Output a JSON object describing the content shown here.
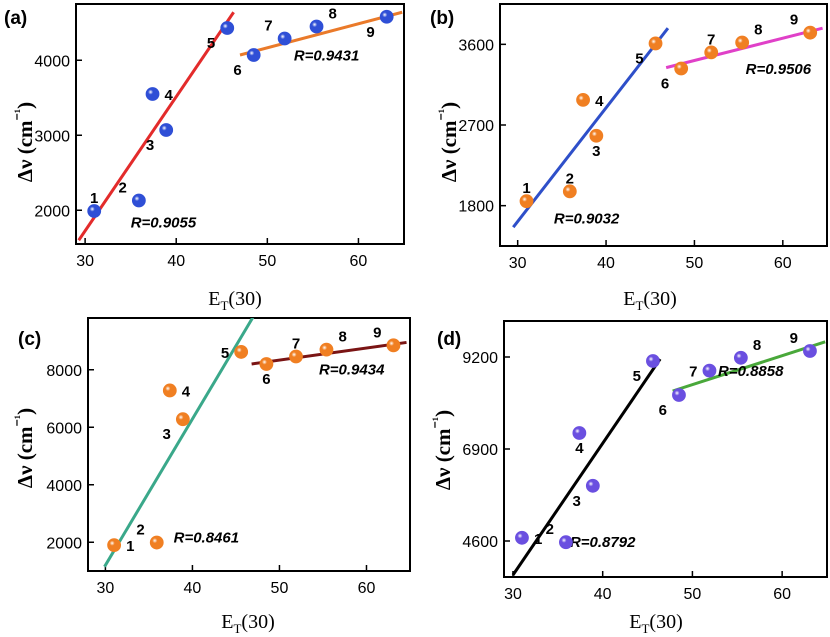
{
  "colors": {
    "blue_point": "#2f4fd6",
    "orange_point": "#f07f22",
    "purple_point": "#6a4fe0",
    "line_a1": "#e32b2b",
    "line_a2": "#ea7a2a",
    "line_b1": "#2e4fc9",
    "line_b2": "#e040c8",
    "line_c1": "#3aa88a",
    "line_c2": "#7a1414",
    "line_d1": "#000000",
    "line_d2": "#49a83a"
  },
  "chart_data": [
    {
      "panel": "(a)",
      "type": "scatter",
      "xlabel": "E_T(30)",
      "ylabel": "Δν (cm⁻¹)",
      "xlim": [
        29,
        65
      ],
      "ylim": [
        1550,
        4750
      ],
      "xticks": [
        30,
        40,
        50,
        60
      ],
      "yticks": [
        2000,
        3000,
        4000
      ],
      "point_color": "blue_point",
      "points": [
        {
          "label": "1",
          "x": 31.0,
          "y": 1990
        },
        {
          "label": "2",
          "x": 35.9,
          "y": 2130
        },
        {
          "label": "3",
          "x": 38.9,
          "y": 3070
        },
        {
          "label": "4",
          "x": 37.4,
          "y": 3550
        },
        {
          "label": "5",
          "x": 45.6,
          "y": 4430
        },
        {
          "label": "6",
          "x": 48.5,
          "y": 4070
        },
        {
          "label": "7",
          "x": 51.9,
          "y": 4290
        },
        {
          "label": "8",
          "x": 55.4,
          "y": 4450
        },
        {
          "label": "9",
          "x": 63.1,
          "y": 4580
        }
      ],
      "fits": [
        {
          "color": "line_a1",
          "x": [
            29.3,
            46.3
          ],
          "y": [
            1600,
            4640
          ],
          "R": "R=0.9055"
        },
        {
          "color": "line_a2",
          "x": [
            47.0,
            64.8
          ],
          "y": [
            4070,
            4640
          ],
          "R": "R=0.9431"
        }
      ],
      "label_offsets": {
        "1": [
          0,
          -1
        ],
        "2": [
          -1,
          -1
        ],
        "3": [
          -1,
          1
        ],
        "4": [
          1,
          0
        ],
        "5": [
          -1,
          1
        ],
        "6": [
          -1,
          1
        ],
        "7": [
          -1,
          -1
        ],
        "8": [
          1,
          -1
        ],
        "9": [
          -1,
          1
        ]
      },
      "r_positions": [
        [
          38.6,
          1770
        ],
        [
          56.5,
          4000
        ]
      ]
    },
    {
      "panel": "(b)",
      "type": "scatter",
      "xlabel": "E_T(30)",
      "ylabel": "Δν (cm⁻¹)",
      "xlim": [
        28,
        65
      ],
      "ylim": [
        1350,
        4050
      ],
      "xticks": [
        30,
        40,
        50,
        60
      ],
      "yticks": [
        1800,
        2700,
        3600
      ],
      "point_color": "orange_point",
      "points": [
        {
          "label": "1",
          "x": 31.0,
          "y": 1850
        },
        {
          "label": "2",
          "x": 35.9,
          "y": 1960
        },
        {
          "label": "3",
          "x": 38.9,
          "y": 2580
        },
        {
          "label": "4",
          "x": 37.4,
          "y": 2980
        },
        {
          "label": "5",
          "x": 45.6,
          "y": 3610
        },
        {
          "label": "6",
          "x": 48.5,
          "y": 3330
        },
        {
          "label": "7",
          "x": 51.9,
          "y": 3510
        },
        {
          "label": "8",
          "x": 55.4,
          "y": 3620
        },
        {
          "label": "9",
          "x": 63.1,
          "y": 3730
        }
      ],
      "fits": [
        {
          "color": "line_b1",
          "x": [
            29.5,
            47.0
          ],
          "y": [
            1560,
            3780
          ],
          "R": "R=0.9032"
        },
        {
          "color": "line_b2",
          "x": [
            46.8,
            64.5
          ],
          "y": [
            3340,
            3780
          ],
          "R": "R=0.9506"
        }
      ],
      "label_offsets": {
        "1": [
          0,
          -1
        ],
        "2": [
          0,
          -1
        ],
        "3": [
          0,
          1
        ],
        "4": [
          1,
          0
        ],
        "5": [
          -1,
          1
        ],
        "6": [
          -1,
          1
        ],
        "7": [
          0,
          -1
        ],
        "8": [
          1,
          -1
        ],
        "9": [
          -1,
          -1
        ]
      },
      "r_positions": [
        [
          37.8,
          1600
        ],
        [
          59.5,
          3270
        ]
      ]
    },
    {
      "panel": "(c)",
      "type": "scatter",
      "xlabel": "E_T(30)",
      "ylabel": "Δν (cm⁻¹)",
      "xlim": [
        28,
        65
      ],
      "ylim": [
        1000,
        9800
      ],
      "xticks": [
        30,
        40,
        50,
        60
      ],
      "yticks": [
        2000,
        4000,
        6000,
        8000
      ],
      "point_color": "orange_point",
      "points": [
        {
          "label": "1",
          "x": 31.0,
          "y": 1900
        },
        {
          "label": "2",
          "x": 35.9,
          "y": 1990
        },
        {
          "label": "3",
          "x": 38.9,
          "y": 6280
        },
        {
          "label": "4",
          "x": 37.4,
          "y": 7280
        },
        {
          "label": "5",
          "x": 45.6,
          "y": 8620
        },
        {
          "label": "6",
          "x": 48.5,
          "y": 8200
        },
        {
          "label": "7",
          "x": 51.9,
          "y": 8460
        },
        {
          "label": "8",
          "x": 55.4,
          "y": 8700
        },
        {
          "label": "9",
          "x": 63.1,
          "y": 8850
        }
      ],
      "fits": [
        {
          "color": "line_c1",
          "x": [
            29.9,
            47.0
          ],
          "y": [
            1150,
            9850
          ],
          "R": "R=0.8461"
        },
        {
          "color": "line_c2",
          "x": [
            46.8,
            64.6
          ],
          "y": [
            8200,
            8950
          ],
          "R": "R=0.9434"
        }
      ],
      "label_offsets": {
        "1": [
          1,
          0
        ],
        "2": [
          -1,
          -1
        ],
        "3": [
          -1,
          1
        ],
        "4": [
          1,
          0
        ],
        "5": [
          -1,
          0
        ],
        "6": [
          0,
          1
        ],
        "7": [
          0,
          -1
        ],
        "8": [
          1,
          -1
        ],
        "9": [
          -1,
          -1
        ]
      },
      "r_positions": [
        [
          41.6,
          1990
        ],
        [
          58.3,
          7830
        ]
      ]
    },
    {
      "panel": "(d)",
      "type": "scatter",
      "xlabel": "E_T(30)",
      "ylabel": "Δν (cm⁻¹)",
      "xlim": [
        29,
        65
      ],
      "ylim": [
        3700,
        10100
      ],
      "xticks": [
        30,
        40,
        50,
        60
      ],
      "yticks": [
        4600,
        6900,
        9200
      ],
      "point_color": "purple_point",
      "points": [
        {
          "label": "1",
          "x": 31.0,
          "y": 4680
        },
        {
          "label": "2",
          "x": 35.9,
          "y": 4570
        },
        {
          "label": "3",
          "x": 38.9,
          "y": 5980
        },
        {
          "label": "4",
          "x": 37.4,
          "y": 7300
        },
        {
          "label": "5",
          "x": 45.6,
          "y": 9100
        },
        {
          "label": "6",
          "x": 48.5,
          "y": 8250
        },
        {
          "label": "7",
          "x": 51.9,
          "y": 8860
        },
        {
          "label": "8",
          "x": 55.4,
          "y": 9180
        },
        {
          "label": "9",
          "x": 63.1,
          "y": 9350
        }
      ],
      "fits": [
        {
          "color": "line_d1",
          "x": [
            30.0,
            46.4
          ],
          "y": [
            3750,
            9150
          ],
          "R": "R=0.8792"
        },
        {
          "color": "line_d2",
          "x": [
            47.8,
            64.8
          ],
          "y": [
            8350,
            9580
          ],
          "R": "R=0.8858"
        }
      ],
      "label_offsets": {
        "1": [
          1,
          0
        ],
        "2": [
          -1,
          -1
        ],
        "3": [
          -1,
          1
        ],
        "4": [
          0,
          1
        ],
        "5": [
          -1,
          1
        ],
        "6": [
          -1,
          1
        ],
        "7": [
          -1,
          0
        ],
        "8": [
          1,
          -1
        ],
        "9": [
          -1,
          -1
        ]
      },
      "r_positions": [
        [
          40.0,
          4450
        ],
        [
          56.5,
          8720
        ]
      ]
    }
  ]
}
